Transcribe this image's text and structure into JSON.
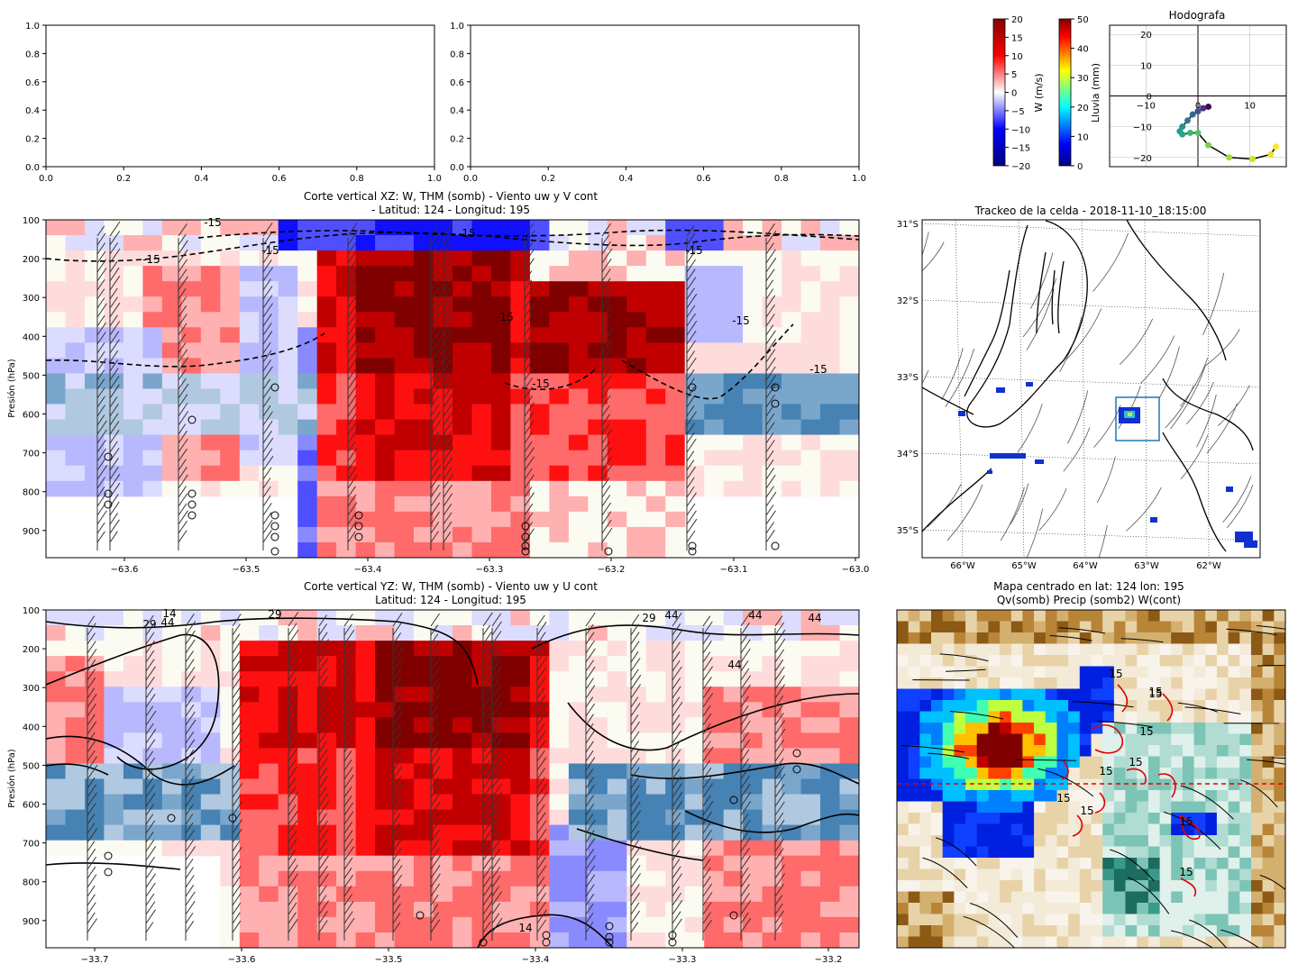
{
  "chart_data": [
    {
      "type": "line",
      "panel": "top-left-empty",
      "title": "",
      "xlim": [
        0,
        1
      ],
      "ylim": [
        0,
        1
      ],
      "xticks": [
        "0.0",
        "0.2",
        "0.4",
        "0.6",
        "0.8",
        "1.0"
      ],
      "yticks": [
        "0.0",
        "0.2",
        "0.4",
        "0.6",
        "0.8",
        "1.0"
      ],
      "series": []
    },
    {
      "type": "line",
      "panel": "top-middle-empty",
      "title": "",
      "xlim": [
        0,
        1
      ],
      "ylim": [
        0,
        1
      ],
      "xticks": [
        "0.0",
        "0.2",
        "0.4",
        "0.6",
        "0.8",
        "1.0"
      ],
      "yticks": [
        "0.0",
        "0.2",
        "0.4",
        "0.6",
        "0.8",
        "1.0"
      ],
      "series": []
    },
    {
      "type": "colorbar",
      "label": "W (m/s)",
      "range": [
        -20,
        20
      ],
      "ticks": [
        "20",
        "15",
        "10",
        "5",
        "0",
        "−5",
        "−10",
        "−15",
        "−20"
      ],
      "colormap": "seismic"
    },
    {
      "type": "colorbar",
      "label": "Lluvia (mm)",
      "range": [
        0,
        50
      ],
      "ticks": [
        "50",
        "40",
        "30",
        "20",
        "10",
        "0"
      ],
      "colormap": "jet"
    },
    {
      "type": "scatter",
      "title": "Hodografa",
      "xlim": [
        -17,
        17
      ],
      "ylim": [
        -23,
        23
      ],
      "xticks": [
        "−10",
        "0",
        "10"
      ],
      "yticks": [
        "20",
        "10",
        "0",
        "−10",
        "−20"
      ],
      "grid": true,
      "x": [
        2,
        1,
        0,
        -1,
        -2,
        -3,
        -3.5,
        -3,
        -1.5,
        0,
        2,
        6,
        10.5,
        14,
        15
      ],
      "y": [
        -3.5,
        -4,
        -5,
        -6,
        -8,
        -10,
        -11.5,
        -12.5,
        -12,
        -12,
        -16,
        -20,
        -20.5,
        -19,
        -16.5
      ]
    },
    {
      "type": "heatmap",
      "title_line1": "Corte vertical XZ: W, THM (somb) - Viento uw y V cont",
      "title_line2": "- Latitud: 124 - Longitud: 195",
      "xlabel": "",
      "ylabel": "Presión (hPa)",
      "xlim": [
        -63.67,
        -63.0
      ],
      "ylim": [
        970,
        100
      ],
      "xticks": [
        "−63.6",
        "−63.5",
        "−63.4",
        "−63.3",
        "−63.2",
        "−63.1",
        "−63.0"
      ],
      "yticks": [
        "100",
        "200",
        "300",
        "400",
        "500",
        "600",
        "700",
        "800",
        "900"
      ],
      "contour_labels": [
        "-15",
        "-15",
        "-15",
        "15",
        "-15",
        "-15",
        "-15",
        "-15",
        "-15"
      ]
    },
    {
      "type": "heatmap",
      "title_line1": "Corte vertical YZ: W, THM (somb) - Viento uw y U cont",
      "title_line2": "Latitud: 124 - Longitud: 195",
      "xlabel": "",
      "ylabel": "Presión (hPa)",
      "xlim": [
        -33.74,
        -33.18
      ],
      "ylim": [
        970,
        100
      ],
      "xticks": [
        "−33.7",
        "−33.6",
        "−33.5",
        "−33.4",
        "−33.3",
        "−33.2"
      ],
      "yticks": [
        "100",
        "200",
        "300",
        "400",
        "500",
        "600",
        "700",
        "800",
        "900"
      ],
      "contour_labels": [
        "29",
        "14",
        "44",
        "29",
        "29",
        "44",
        "44",
        "44",
        "44",
        "14"
      ]
    },
    {
      "type": "map",
      "title": "Trackeo de la celda - 2018-11-10_18:15:00",
      "lat_labels": [
        "31°S",
        "32°S",
        "33°S",
        "34°S",
        "35°S"
      ],
      "lon_labels": [
        "66°W",
        "65°W",
        "64°W",
        "63°W",
        "62°W"
      ]
    },
    {
      "type": "map",
      "title_line1": "Mapa centrado en lat: 124 lon: 195",
      "title_line2": "Qv(somb) Precip (somb2) W(cont)",
      "contour_labels": [
        "15",
        "15",
        "15",
        "15",
        "15",
        "15",
        "15",
        "15",
        "15",
        "15"
      ]
    }
  ],
  "colors": {
    "dark_red": "#800000",
    "red": "#ff1010",
    "light_red": "#ffb0b0",
    "blue": "#1010ff",
    "light_blue": "#b8b8ff",
    "steel_blue": "#4682b4",
    "light_steel": "#b0c8e0",
    "ivory": "#fafaf0",
    "teal": "#3a9a8a",
    "tan": "#c8a060"
  }
}
